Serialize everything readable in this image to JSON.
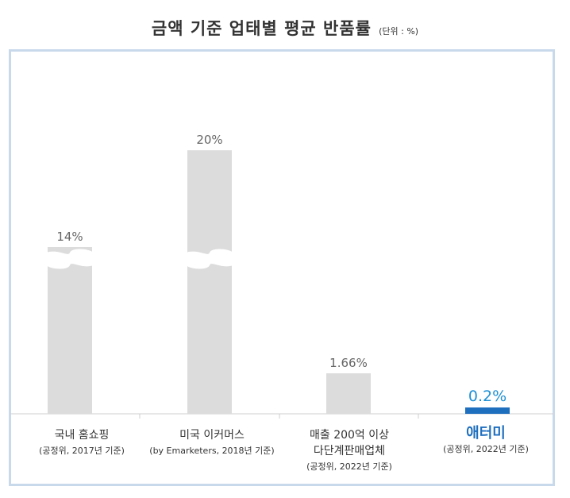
{
  "title": "금액 기준 업태별 평균 반품률",
  "unit_note": "(단위 : %)",
  "colors": {
    "bar": "#dcdcdc",
    "highlight": "#1f6fbf",
    "highlight_label": "#1e90d6",
    "frame": "#c9d9ec",
    "label": "#666666"
  },
  "chart_data": {
    "type": "bar",
    "title": "금액 기준 업태별 평균 반품률",
    "unit": "%",
    "categories": [
      "국내 홈쇼핑",
      "미국 이커머스",
      "매출 200억 이상 다단계판매업체",
      "애터미"
    ],
    "values": [
      14,
      20,
      1.66,
      0.2
    ],
    "value_labels": [
      "14%",
      "20%",
      "1.66%",
      "0.2%"
    ],
    "axis_break": [
      true,
      true,
      false,
      false
    ],
    "highlight_index": 3
  },
  "categories": [
    {
      "name": "국내 홈쇼핑",
      "source": "(공정위, 2017년 기준)"
    },
    {
      "name": "미국 이커머스",
      "source": "(by Emarketers, 2018년 기준)"
    },
    {
      "name_line1": "매출 200억 이상",
      "name_line2": "다단계판매업체",
      "source": "(공정위, 2022년 기준)"
    },
    {
      "name": "애터미",
      "source": "(공정위, 2022년 기준)"
    }
  ]
}
